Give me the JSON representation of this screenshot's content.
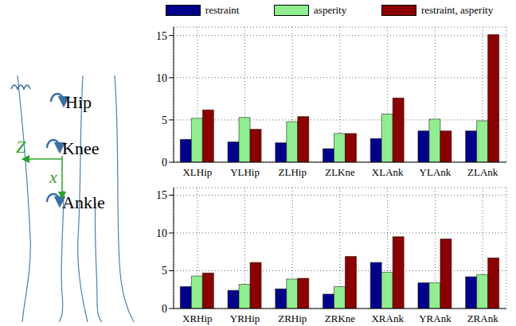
{
  "chart_data": [
    {
      "type": "bar",
      "categories": [
        "XLHip",
        "YLHip",
        "ZLHip",
        "ZLKne",
        "XLAnk",
        "YLAnk",
        "ZLAnk"
      ],
      "series": [
        {
          "name": "restraint",
          "color": "#00008b",
          "values": [
            2.7,
            2.4,
            2.3,
            1.6,
            2.8,
            3.7,
            3.7
          ]
        },
        {
          "name": "asperity",
          "color": "#90ee90",
          "values": [
            5.2,
            5.3,
            4.8,
            3.4,
            5.7,
            5.1,
            4.9
          ]
        },
        {
          "name": "restraint, asperity",
          "color": "#8b0000",
          "values": [
            6.2,
            3.9,
            5.4,
            3.4,
            7.6,
            3.7,
            15.1
          ]
        }
      ],
      "ylim": [
        0,
        16
      ],
      "yticks": [
        0,
        5,
        10,
        15
      ],
      "grid": true,
      "legend": "top"
    },
    {
      "type": "bar",
      "categories": [
        "XRHip",
        "YRHip",
        "ZRHip",
        "ZRKne",
        "XRAnk",
        "YRAnk",
        "ZRAnk"
      ],
      "series": [
        {
          "name": "restraint",
          "color": "#00008b",
          "values": [
            2.9,
            2.4,
            2.6,
            1.9,
            6.1,
            3.4,
            4.2
          ]
        },
        {
          "name": "asperity",
          "color": "#90ee90",
          "values": [
            4.3,
            3.2,
            3.9,
            2.9,
            4.8,
            3.4,
            4.5
          ]
        },
        {
          "name": "restraint, asperity",
          "color": "#8b0000",
          "values": [
            4.7,
            6.1,
            4.0,
            6.9,
            9.5,
            9.2,
            6.7
          ]
        }
      ],
      "ylim": [
        0,
        16
      ],
      "yticks": [
        0,
        5,
        10,
        15
      ],
      "grid": true
    }
  ],
  "diagram": {
    "joints": [
      "Hip",
      "Knee",
      "Ankle"
    ],
    "axes": [
      "Z",
      "x"
    ]
  }
}
